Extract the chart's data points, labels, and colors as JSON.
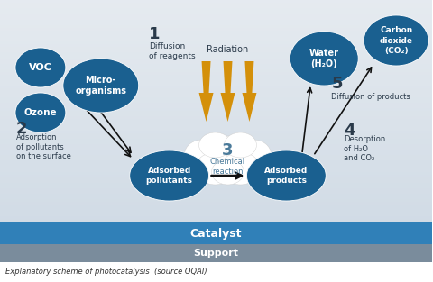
{
  "circle_color": "#1a6090",
  "text_color_dark": "#2a3a4a",
  "arrow_color": "#111111",
  "radiation_color": "#d4900a",
  "title": "Explanatory scheme of photocatalysis  (source OQAI)",
  "voc_label": "VOC",
  "ozone_label": "Ozone",
  "micro_label": "Micro-\norganisms",
  "adsorbed_pollutants_label": "Adsorbed\npollutants",
  "chemical_reaction_label": "Chemical\nreaction",
  "adsorbed_products_label": "Adsorbed\nproducts",
  "water_label": "Water\n(H₂O)",
  "co2_label": "Carbon\ndioxide\n(CO₂)",
  "catalyst_label": "Catalyst",
  "support_label": "Support",
  "step1_num": "1",
  "step1_text": "Diffusion\nof reagents",
  "step2_num": "2",
  "step2_text": "Adsorption\nof pollutants\non the surface",
  "step3_num": "3",
  "step4_num": "4",
  "step4_text": "Desorption\nof H₂O\nand CO₂",
  "step5_num": "5",
  "step5_text": "Diffusion of products",
  "radiation_label": "Radiation",
  "catalyst_color": "#3080b8",
  "support_color": "#7a8c9c"
}
